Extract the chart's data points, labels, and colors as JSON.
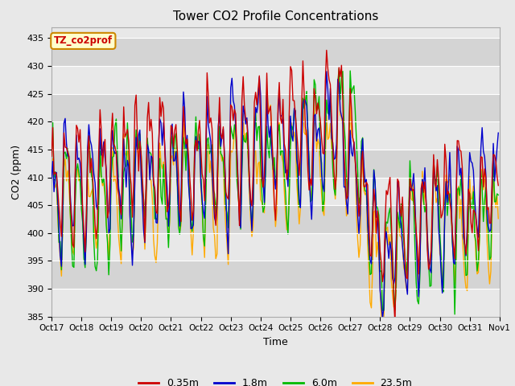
{
  "title": "Tower CO2 Profile Concentrations",
  "xlabel": "Time",
  "ylabel": "CO2 (ppm)",
  "ylim": [
    385,
    437
  ],
  "label_box_text": "TZ_co2prof",
  "legend_labels": [
    "0.35m",
    "1.8m",
    "6.0m",
    "23.5m"
  ],
  "legend_colors": [
    "#cc0000",
    "#0000cc",
    "#00bb00",
    "#ffaa00"
  ],
  "tick_labels": [
    "Oct 17",
    "Oct 18",
    "Oct 19",
    "Oct 20",
    "Oct 21",
    "Oct 22",
    "Oct 23",
    "Oct 24",
    "Oct 25",
    "Oct 26",
    "Oct 27",
    "Oct 28",
    "Oct 29",
    "Oct 30",
    "Oct 31",
    "Nov 1"
  ],
  "yticks": [
    385,
    390,
    395,
    400,
    405,
    410,
    415,
    420,
    425,
    430,
    435
  ],
  "bg_color": "#e8e8e8",
  "band_color": "#d4d4d4",
  "fig_bg": "#e8e8e8",
  "title_fontsize": 11,
  "axis_label_fontsize": 9,
  "tick_fontsize": 8,
  "lw": 1.0,
  "n_days": 15,
  "n_pts_per_day": 24
}
